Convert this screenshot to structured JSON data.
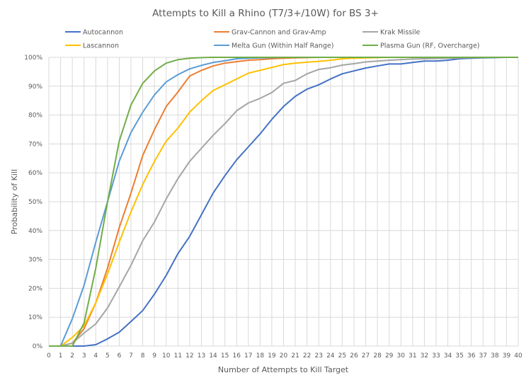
{
  "chart_data": {
    "type": "line",
    "title": "Attempts to Kill a Rhino (T7/3+/10W) for BS 3+",
    "xlabel": "Number of Attempts to Kill Target",
    "ylabel": "Probability of Kill",
    "xlim": [
      0,
      40
    ],
    "ylim": [
      0,
      100
    ],
    "x": [
      0,
      1,
      2,
      3,
      4,
      5,
      6,
      7,
      8,
      9,
      10,
      11,
      12,
      13,
      14,
      15,
      16,
      17,
      18,
      19,
      20,
      21,
      22,
      23,
      24,
      25,
      26,
      27,
      28,
      29,
      30,
      31,
      32,
      33,
      34,
      35,
      36,
      37,
      38,
      39,
      40
    ],
    "x_ticks": [
      "0",
      "1",
      "2",
      "3",
      "4",
      "5",
      "6",
      "7",
      "8",
      "9",
      "10",
      "11",
      "12",
      "13",
      "14",
      "15",
      "16",
      "17",
      "18",
      "19",
      "20",
      "21",
      "22",
      "23",
      "24",
      "25",
      "26",
      "27",
      "28",
      "29",
      "30",
      "31",
      "32",
      "33",
      "34",
      "35",
      "36",
      "37",
      "38",
      "39",
      "40"
    ],
    "y_ticks": [
      "0%",
      "10%",
      "20%",
      "30%",
      "40%",
      "50%",
      "60%",
      "70%",
      "80%",
      "90%",
      "100%"
    ],
    "y_tick_values": [
      0,
      10,
      20,
      30,
      40,
      50,
      60,
      70,
      80,
      90,
      100
    ],
    "grid": true,
    "legend_position": "top",
    "series": [
      {
        "name": "Autocannon",
        "color": "#4472c4",
        "values": [
          0,
          0,
          0,
          0,
          0.5,
          2.5,
          4.8,
          8.5,
          12.3,
          18,
          24.5,
          32,
          38,
          45.5,
          53,
          59,
          64.5,
          69,
          73.5,
          78.5,
          83,
          86.5,
          89,
          90.5,
          92.5,
          94.3,
          95.3,
          96.3,
          97,
          97.7,
          97.7,
          98.2,
          98.7,
          98.7,
          99,
          99.5,
          99.7,
          99.8,
          99.9,
          100,
          100
        ]
      },
      {
        "name": "Grav-Cannon and Grav-Amp",
        "color": "#ed7d31",
        "values": [
          0,
          0,
          1,
          6,
          15,
          27,
          41,
          53,
          66,
          75,
          83,
          88,
          93.5,
          95.5,
          97,
          98,
          98.5,
          99,
          99.2,
          99.5,
          99.7,
          99.8,
          99.9,
          100,
          100,
          100,
          100,
          100,
          100,
          100,
          100,
          100,
          100,
          100,
          100,
          100,
          100,
          100,
          100,
          100,
          100
        ]
      },
      {
        "name": "Krak Missile",
        "color": "#a5a5a5",
        "values": [
          0,
          0,
          1,
          4.5,
          7.7,
          13.2,
          20.5,
          28,
          36.5,
          43,
          51,
          58,
          64,
          68.5,
          73,
          77,
          81.5,
          84.2,
          85.8,
          87.8,
          91,
          92,
          94.3,
          95.8,
          96.4,
          97.3,
          97.8,
          98.4,
          98.7,
          99,
          99.2,
          99.4,
          99.5,
          99.6,
          99.7,
          99.8,
          99.9,
          99.9,
          100,
          100,
          100
        ]
      },
      {
        "name": "Lascannon",
        "color": "#ffc000",
        "values": [
          0,
          0,
          3,
          7,
          15,
          25,
          36,
          46.5,
          56,
          64,
          71,
          75.5,
          81,
          85,
          88.5,
          90.5,
          92.5,
          94.5,
          95.5,
          96.5,
          97.5,
          98,
          98.3,
          98.6,
          99,
          99.5,
          99.7,
          99.8,
          99.9,
          100,
          100,
          100,
          100,
          100,
          100,
          100,
          100,
          100,
          100,
          100,
          100
        ]
      },
      {
        "name": "Melta Gun (Within Half Range)",
        "color": "#5b9bd5",
        "values": [
          0,
          0,
          9.5,
          21,
          36,
          50,
          64,
          74,
          81,
          87,
          91.5,
          94,
          96,
          97.2,
          98.2,
          98.8,
          99.5,
          99.7,
          99.8,
          99.9,
          100,
          100,
          100,
          100,
          100,
          100,
          100,
          100,
          100,
          100,
          100,
          100,
          100,
          100,
          100,
          100,
          100,
          100,
          100,
          100,
          100
        ]
      },
      {
        "name": "Plasma Gun (RF, Overcharge)",
        "color": "#70ad47",
        "values": [
          0,
          0,
          0,
          8,
          27,
          50,
          71,
          83.5,
          91,
          95.3,
          98,
          99.2,
          99.7,
          99.9,
          100,
          100,
          100,
          100,
          100,
          100,
          100,
          100,
          100,
          100,
          100,
          100,
          100,
          100,
          100,
          100,
          100,
          100,
          100,
          100,
          100,
          100,
          100,
          100,
          100,
          100,
          100
        ]
      }
    ]
  }
}
